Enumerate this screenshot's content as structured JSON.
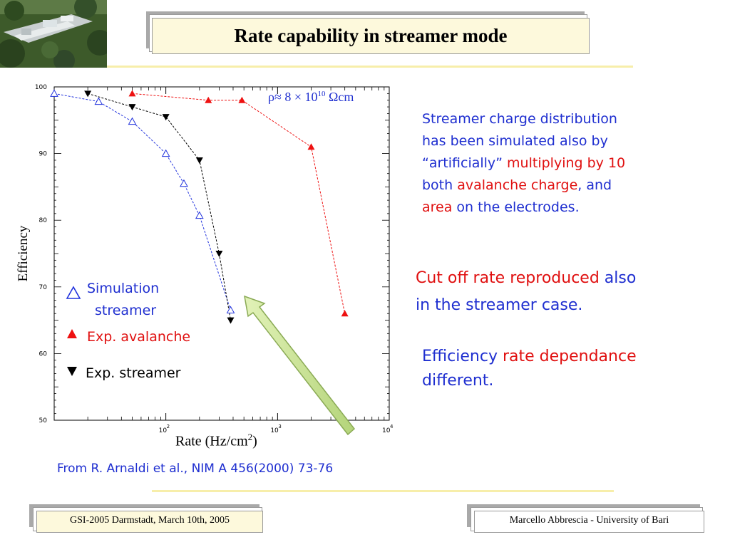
{
  "slide": {
    "title": "Rate capability in streamer mode",
    "citation": "From R. Arnaldi et al., NIM A 456(2000) 73-76",
    "footer_left": "GSI-2005 Darmstadt, March 10th, 2005",
    "footer_right": "Marcello Abbrescia - University of Bari"
  },
  "notes": {
    "note1": {
      "line1": "Streamer charge distribution",
      "line2": "has been simulated also by",
      "line3_a": "“artificially” ",
      "line3_b": "multiplying by 10",
      "line4_a": "both ",
      "line4_b": "avalanche charge",
      "line4_c": ", and",
      "line5_a": "area",
      "line5_b": " on the electrodes."
    },
    "note2": {
      "line1_a": "Cut off rate reproduced",
      "line1_b": " also",
      "line2": "in the streamer case."
    },
    "note3": {
      "line1_a": "Efficiency ",
      "line1_b": "rate dependance",
      "line2": "different."
    }
  },
  "legend": {
    "sim_line1": "Simulation",
    "sim_line2": "streamer",
    "exp_avalanche": "Exp. avalanche",
    "exp_streamer": "Exp. streamer"
  },
  "colors": {
    "simulation": "#2233dd",
    "avalanche": "#ee1111",
    "streamer": "#000000",
    "arrow_fill": "#c4e08a",
    "arrow_stroke": "#8aaa55",
    "accent_line": "#f7eeaa"
  },
  "chart_data": {
    "type": "scatter",
    "title": "",
    "annotation": {
      "rho": "ρ",
      "approx": "≈ 8 × 10",
      "exp": "10",
      "unit": " Ωcm"
    },
    "xlabel": "Rate (Hz/cm",
    "xlabel_sup": "2",
    "xlabel_end": ")",
    "ylabel": "Efficiency",
    "x_scale": "log",
    "xlim": [
      10,
      10000
    ],
    "ylim": [
      50,
      100
    ],
    "y_ticks": [
      {
        "v": 50,
        "label": "50"
      },
      {
        "v": 60,
        "label": "60"
      },
      {
        "v": 70,
        "label": "70"
      },
      {
        "v": 80,
        "label": "80"
      },
      {
        "v": 90,
        "label": "90"
      },
      {
        "v": 100,
        "label": "100"
      }
    ],
    "x_ticks": [
      {
        "v": 100,
        "base": "10",
        "exp": "2"
      },
      {
        "v": 1000,
        "base": "10",
        "exp": "3"
      },
      {
        "v": 10000,
        "base": "10",
        "exp": "4"
      }
    ],
    "grid": false,
    "series": [
      {
        "name": "Simulation streamer",
        "marker": "open-triangle-up",
        "color": "#2233dd",
        "points": [
          [
            10,
            99
          ],
          [
            25,
            97.8
          ],
          [
            50,
            94.8
          ],
          [
            100,
            90
          ],
          [
            145,
            85.5
          ],
          [
            200,
            80.7
          ],
          [
            380,
            66.5
          ]
        ]
      },
      {
        "name": "Exp. avalanche",
        "marker": "filled-triangle-up",
        "color": "#ee1111",
        "points": [
          [
            50,
            99
          ],
          [
            240,
            98
          ],
          [
            480,
            98
          ],
          [
            2000,
            91
          ],
          [
            4000,
            66
          ]
        ]
      },
      {
        "name": "Exp. streamer",
        "marker": "filled-triangle-down",
        "color": "#000000",
        "points": [
          [
            20,
            99
          ],
          [
            50,
            97
          ],
          [
            100,
            95.5
          ],
          [
            200,
            89
          ],
          [
            300,
            75
          ],
          [
            380,
            65
          ]
        ]
      }
    ]
  }
}
